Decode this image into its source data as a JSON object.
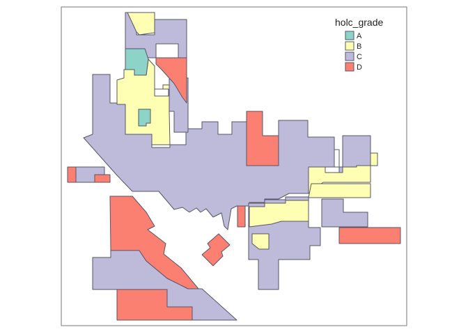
{
  "legend": {
    "title": "holc_grade",
    "items": [
      {
        "label": "A",
        "color": "#8DD3C7"
      },
      {
        "label": "B",
        "color": "#FFFFB3"
      },
      {
        "label": "C",
        "color": "#BEBADA"
      },
      {
        "label": "D",
        "color": "#FB8072"
      }
    ]
  },
  "map": {
    "background": "#ffffff",
    "frame_color": "#777777",
    "outline_color": "#555566",
    "districts_by_grade": {
      "A": 2,
      "B": 6,
      "C": 8,
      "D": 9
    }
  }
}
